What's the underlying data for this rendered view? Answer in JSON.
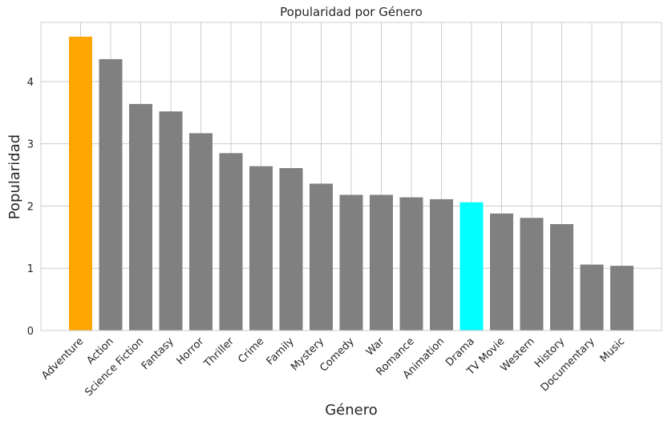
{
  "chart_data": {
    "type": "bar",
    "title": "Popularidad por Género",
    "xlabel": "Género",
    "ylabel": "Popularidad",
    "ylim": [
      0,
      4.95
    ],
    "yticks": [
      "0",
      "1",
      "2",
      "3",
      "4"
    ],
    "grid": true,
    "categories": [
      "Adventure",
      "Action",
      "Science Fiction",
      "Fantasy",
      "Horror",
      "Thriller",
      "Crime",
      "Family",
      "Mystery",
      "Comedy",
      "War",
      "Romance",
      "Animation",
      "Drama",
      "TV Movie",
      "Western",
      "History",
      "Documentary",
      "Music"
    ],
    "values": [
      4.72,
      4.36,
      3.64,
      3.52,
      3.17,
      2.85,
      2.64,
      2.61,
      2.36,
      2.18,
      2.18,
      2.14,
      2.11,
      2.06,
      1.88,
      1.81,
      1.71,
      1.06,
      1.04
    ],
    "colors": [
      "#FFA500",
      "#808080",
      "#808080",
      "#808080",
      "#808080",
      "#808080",
      "#808080",
      "#808080",
      "#808080",
      "#808080",
      "#808080",
      "#808080",
      "#808080",
      "#00FFFF",
      "#808080",
      "#808080",
      "#808080",
      "#808080",
      "#808080"
    ]
  }
}
